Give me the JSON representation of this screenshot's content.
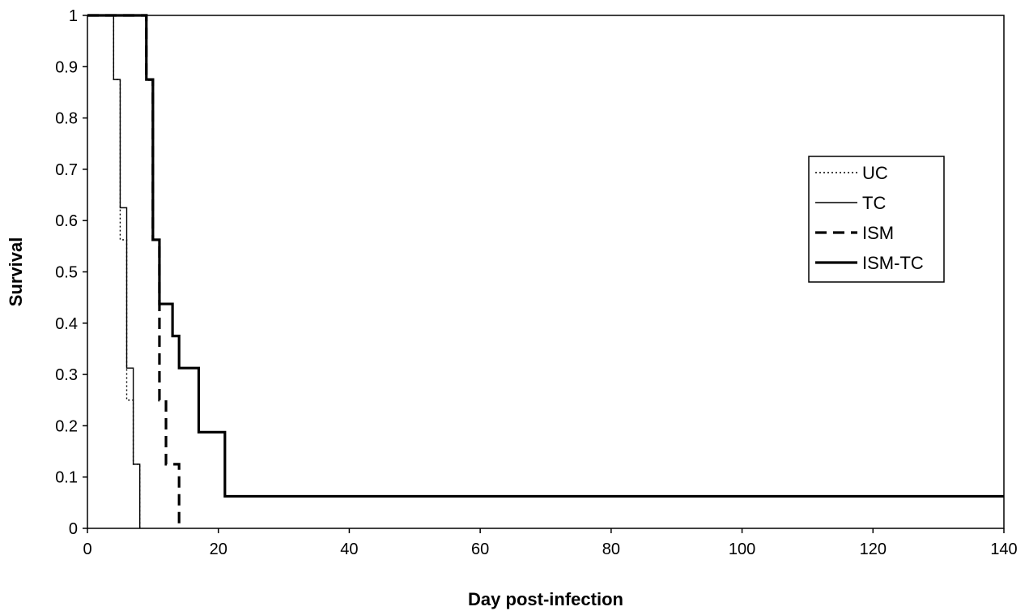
{
  "chart_data": {
    "type": "line",
    "step": true,
    "title": "",
    "xlabel": "Day post-infection",
    "ylabel": "Survival",
    "xlim": [
      0,
      140
    ],
    "ylim": [
      0,
      1
    ],
    "x_ticks": [
      0,
      20,
      40,
      60,
      80,
      100,
      120,
      140
    ],
    "y_ticks": [
      "0",
      "0.1",
      "0.2",
      "0.3",
      "0.4",
      "0.5",
      "0.6",
      "0.7",
      "0.8",
      "0.9",
      "1"
    ],
    "grid": false,
    "legend_position": "right",
    "series": [
      {
        "name": "UC",
        "line_style": "dotted",
        "points": [
          [
            0,
            1
          ],
          [
            4,
            1
          ],
          [
            4,
            0.875
          ],
          [
            5,
            0.875
          ],
          [
            5,
            0.5625
          ],
          [
            6,
            0.5625
          ],
          [
            6,
            0.25
          ],
          [
            7,
            0.25
          ],
          [
            7,
            0.125
          ],
          [
            8,
            0.125
          ],
          [
            8,
            0
          ]
        ]
      },
      {
        "name": "TC",
        "line_style": "thin-solid",
        "points": [
          [
            0,
            1
          ],
          [
            4,
            1
          ],
          [
            4,
            0.875
          ],
          [
            5,
            0.875
          ],
          [
            5,
            0.625
          ],
          [
            6,
            0.625
          ],
          [
            6,
            0.3125
          ],
          [
            7,
            0.3125
          ],
          [
            7,
            0.125
          ],
          [
            8,
            0.125
          ],
          [
            8,
            0
          ]
        ]
      },
      {
        "name": "ISM",
        "line_style": "dashed",
        "points": [
          [
            0,
            1
          ],
          [
            9,
            1
          ],
          [
            9,
            0.875
          ],
          [
            10,
            0.875
          ],
          [
            10,
            0.5625
          ],
          [
            11,
            0.5625
          ],
          [
            11,
            0.25
          ],
          [
            12,
            0.25
          ],
          [
            12,
            0.125
          ],
          [
            14,
            0.125
          ],
          [
            14,
            0
          ]
        ]
      },
      {
        "name": "ISM-TC",
        "line_style": "thick-solid",
        "points": [
          [
            0,
            1
          ],
          [
            9,
            1
          ],
          [
            9,
            0.875
          ],
          [
            10,
            0.875
          ],
          [
            10,
            0.5625
          ],
          [
            11,
            0.5625
          ],
          [
            11,
            0.4375
          ],
          [
            13,
            0.4375
          ],
          [
            13,
            0.375
          ],
          [
            14,
            0.375
          ],
          [
            14,
            0.3125
          ],
          [
            17,
            0.3125
          ],
          [
            17,
            0.1875
          ],
          [
            21,
            0.1875
          ],
          [
            21,
            0.0625
          ],
          [
            140,
            0.0625
          ]
        ]
      }
    ]
  }
}
